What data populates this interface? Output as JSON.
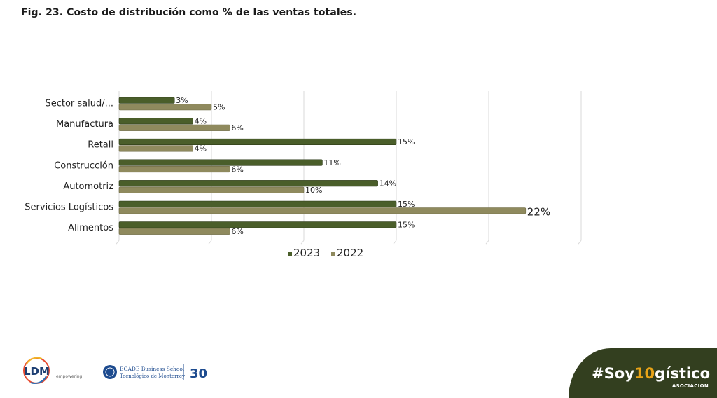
{
  "title": "Fig. 23. Costo de distribución como % de las ventas totales.",
  "chart_data": {
    "type": "bar",
    "orientation": "horizontal",
    "categories": [
      "Sector salud/...",
      "Manufactura",
      "Retail",
      "Construcción",
      "Automotriz",
      "Servicios Logísticos",
      "Alimentos"
    ],
    "series": [
      {
        "name": "2023",
        "values": [
          3,
          4,
          15,
          11,
          14,
          15,
          15
        ],
        "color": "#4a5e2a"
      },
      {
        "name": "2022",
        "values": [
          5,
          6,
          4,
          6,
          10,
          22,
          6
        ],
        "color": "#8f8a5e"
      }
    ],
    "xlim": [
      0,
      25
    ],
    "grid": true,
    "legend": "bottom",
    "value_suffix": "%"
  },
  "footer": {
    "ldm_logo": "LDM",
    "ldm_tagline": "empowering",
    "egade_line1": "EGADE Business School",
    "egade_line2": "Tecnológico de Monterrey",
    "anniversary": "30",
    "hashtag_pre": "#Soy",
    "hashtag_accent": "10",
    "hashtag_post": "gístico",
    "hashtag_sub": "ASOCIACIÓN"
  }
}
